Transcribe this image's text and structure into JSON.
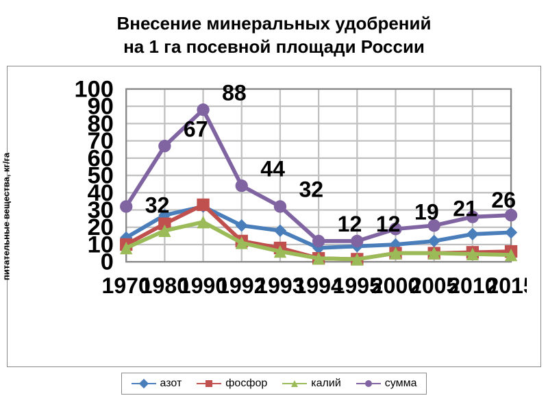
{
  "title_line1": "Внесение минеральных удобрений",
  "title_line2": "на 1 га посевной площади России",
  "title_fontsize": 26,
  "ylabel": "питательные вещества, кг/га",
  "ylabel_fontsize": 13,
  "chart": {
    "type": "line",
    "categories": [
      "1970",
      "1980",
      "1990",
      "1992",
      "1993",
      "1994",
      "1995",
      "2000",
      "2005",
      "2010",
      "2015"
    ],
    "ylim": [
      0,
      100
    ],
    "ytick_step": 10,
    "xtick_fontsize": 14,
    "ytick_fontsize": 15,
    "grid_color": "#c0c0c0",
    "background_color": "#ffffff",
    "line_width": 2.5,
    "marker_size": 8,
    "series": [
      {
        "name": "азот",
        "color": "#4a7ebb",
        "marker": "diamond",
        "values": [
          14,
          27,
          32,
          21,
          18,
          8,
          9,
          10,
          12,
          16,
          17
        ]
      },
      {
        "name": "фосфор",
        "color": "#c0504d",
        "marker": "square",
        "values": [
          10,
          22,
          33,
          12,
          8,
          2,
          1.5,
          5,
          5,
          5.5,
          6
        ]
      },
      {
        "name": "калий",
        "color": "#9bbb59",
        "marker": "triangle",
        "values": [
          8,
          18,
          23,
          11,
          6,
          2,
          1.5,
          5,
          5,
          4.5,
          4
        ]
      },
      {
        "name": "сумма",
        "color": "#8064a2",
        "marker": "circle",
        "values": [
          32,
          67,
          88,
          44,
          32,
          12,
          12,
          19,
          21,
          26,
          27
        ],
        "show_labels": true
      }
    ],
    "legend": {
      "position": "bottom",
      "fontsize": 16
    }
  }
}
